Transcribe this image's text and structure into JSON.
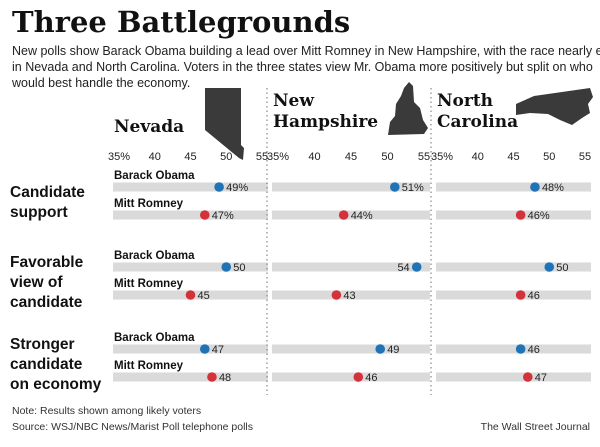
{
  "title": "Three Battlegrounds",
  "subtitle": [
    "New polls show Barack Obama building a lead over Mitt Romney in New Hampshire, with the race nearly even",
    "in Nevada and North Carolina. Voters in the three states view Mr. Obama more positively but split on who",
    "would best handle the economy."
  ],
  "footer": {
    "note": "Note: Results shown among likely voters",
    "source": "Source: WSJ/NBC News/Marist Poll telephone polls",
    "credit": "The Wall Street Journal"
  },
  "colors": {
    "obama": "#1f73b7",
    "romney": "#d3323a",
    "band": "#dadada",
    "divider": "#888888",
    "state_fill": "#3a3a3a"
  },
  "icons": [
    "nevada-map-icon",
    "new-hampshire-map-icon",
    "north-carolina-map-icon"
  ],
  "chart_data": {
    "type": "scatter",
    "axis": {
      "xlim": [
        35,
        55
      ],
      "ticks": [
        35,
        40,
        45,
        50,
        55
      ],
      "tick_labels": [
        "35%",
        "40",
        "45",
        "50",
        "55"
      ]
    },
    "states": [
      {
        "name_lines": [
          "Nevada"
        ]
      },
      {
        "name_lines": [
          "New",
          "Hampshire"
        ]
      },
      {
        "name_lines": [
          "North",
          "Carolina"
        ]
      }
    ],
    "sections": [
      {
        "label_lines": [
          "Candidate",
          "support"
        ],
        "rows": [
          {
            "candidate": "Barack Obama",
            "party": "obama",
            "values": [
              49,
              51,
              48
            ],
            "labels": [
              "49%",
              "51%",
              "48%"
            ]
          },
          {
            "candidate": "Mitt Romney",
            "party": "romney",
            "values": [
              47,
              44,
              46
            ],
            "labels": [
              "47%",
              "44%",
              "46%"
            ]
          }
        ]
      },
      {
        "label_lines": [
          "Favorable",
          "view of",
          "candidate"
        ],
        "rows": [
          {
            "candidate": "Barack Obama",
            "party": "obama",
            "values": [
              50,
              54,
              50
            ],
            "labels": [
              "50",
              "54",
              "50"
            ]
          },
          {
            "candidate": "Mitt Romney",
            "party": "romney",
            "values": [
              45,
              43,
              46
            ],
            "labels": [
              "45",
              "43",
              "46"
            ]
          }
        ]
      },
      {
        "label_lines": [
          "Stronger",
          "candidate",
          "on economy"
        ],
        "rows": [
          {
            "candidate": "Barack Obama",
            "party": "obama",
            "values": [
              47,
              49,
              46
            ],
            "labels": [
              "47",
              "49",
              "46"
            ]
          },
          {
            "candidate": "Mitt Romney",
            "party": "romney",
            "values": [
              48,
              46,
              47
            ],
            "labels": [
              "48",
              "46",
              "47"
            ]
          }
        ]
      }
    ]
  }
}
